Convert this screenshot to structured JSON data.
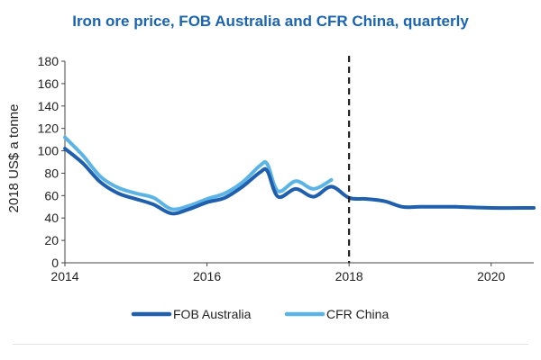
{
  "chart_data": {
    "type": "line",
    "title": "Iron ore price, FOB Australia and CFR China, quarterly",
    "ylabel": "2018 US$ a tonne",
    "xlabel": "",
    "xlim": [
      2014.0,
      2020.6
    ],
    "ylim": [
      0,
      180
    ],
    "yticks": [
      0,
      20,
      40,
      60,
      80,
      100,
      120,
      140,
      160,
      180
    ],
    "xticks": [
      2014,
      2016,
      2018,
      2020
    ],
    "xtick_labels": [
      "2014",
      "2016",
      "2018",
      "2020"
    ],
    "grid": false,
    "legend_position": "bottom",
    "annotations": [
      {
        "type": "vertical-dashed-line",
        "x": 2018.0
      }
    ],
    "series": [
      {
        "name": "FOB Australia",
        "color": "#1f5fae",
        "x": [
          2014.0,
          2014.25,
          2014.5,
          2014.75,
          2015.0,
          2015.25,
          2015.5,
          2015.75,
          2016.0,
          2016.25,
          2016.5,
          2016.75,
          2016.85,
          2017.0,
          2017.25,
          2017.5,
          2017.75,
          2018.0,
          2018.25,
          2018.5,
          2018.75,
          2019.0,
          2019.5,
          2020.0,
          2020.6
        ],
        "values": [
          102,
          89,
          72,
          62,
          57,
          52,
          44,
          48,
          54,
          58,
          68,
          81,
          82,
          59,
          66,
          59,
          68,
          58,
          57,
          55,
          50,
          50,
          50,
          49,
          49
        ]
      },
      {
        "name": "CFR China",
        "color": "#5bb4e5",
        "x": [
          2014.0,
          2014.25,
          2014.5,
          2014.75,
          2015.0,
          2015.25,
          2015.5,
          2015.75,
          2016.0,
          2016.25,
          2016.5,
          2016.75,
          2016.85,
          2017.0,
          2017.25,
          2017.5,
          2017.75
        ],
        "values": [
          112,
          96,
          77,
          67,
          62,
          58,
          48,
          51,
          57,
          62,
          72,
          87,
          88,
          64,
          73,
          66,
          74
        ]
      }
    ]
  }
}
